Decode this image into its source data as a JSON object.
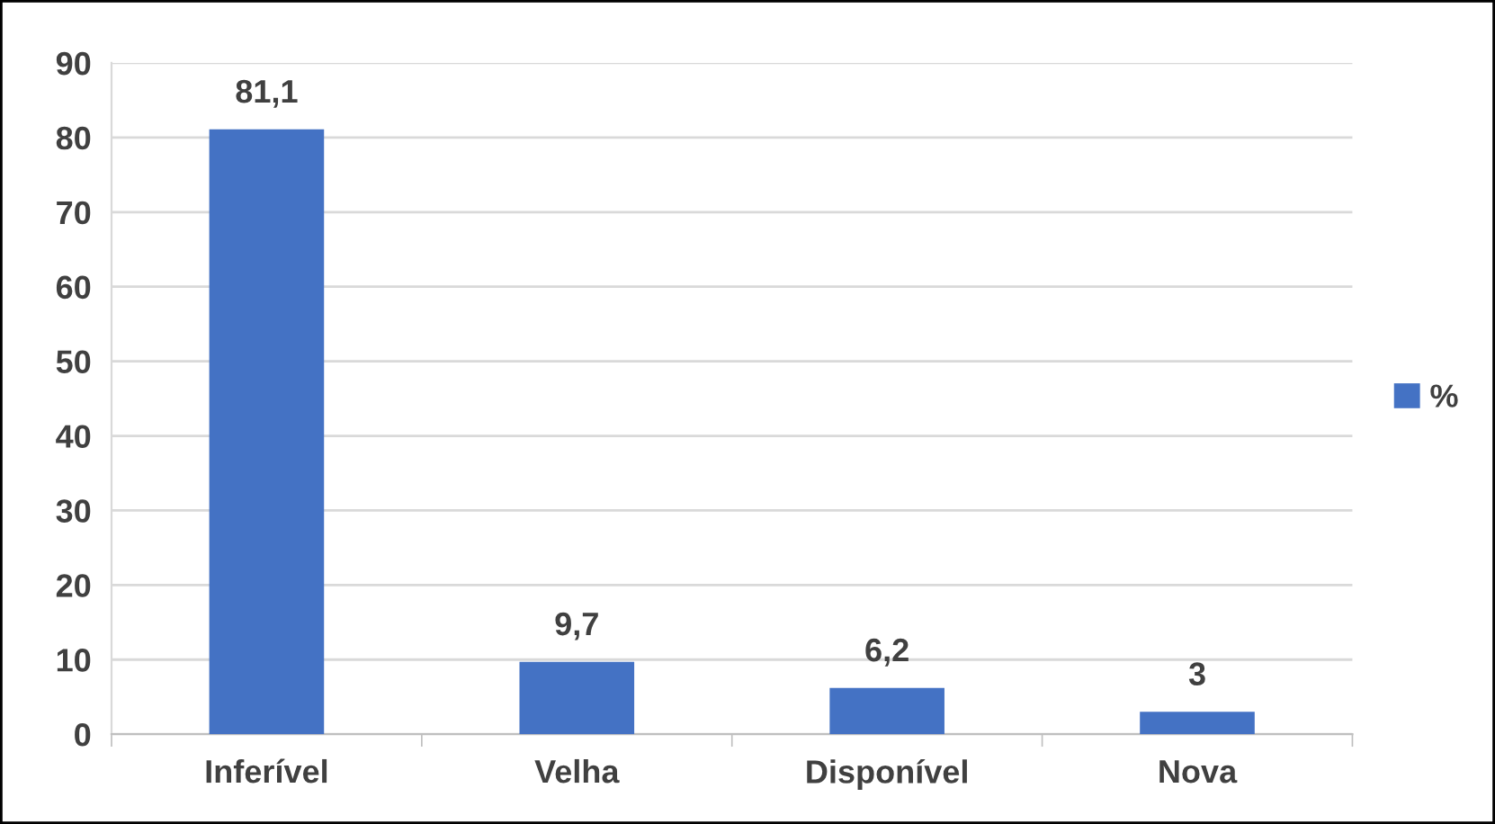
{
  "chart_data": {
    "type": "bar",
    "categories": [
      "Inferível",
      "Velha",
      "Disponível",
      "Nova"
    ],
    "series": [
      {
        "name": "%",
        "color": "#4472c4",
        "values": [
          81.1,
          9.7,
          6.2,
          3
        ],
        "value_labels": [
          "81,1",
          "9,7",
          "6,2",
          "3"
        ]
      }
    ],
    "ylim": [
      0,
      90
    ],
    "yticks": [
      0,
      10,
      20,
      30,
      40,
      50,
      60,
      70,
      80,
      90
    ],
    "grid": "y",
    "legend": "right"
  }
}
